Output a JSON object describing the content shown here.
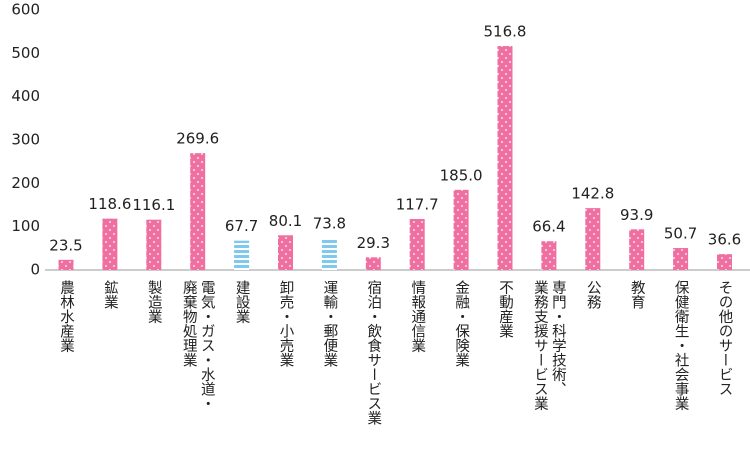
{
  "chart_data": {
    "type": "bar",
    "categories": [
      "農林水産業",
      "鉱業",
      "製造業",
      "電気・ガス・水道・\n廃棄物処理業",
      "建設業",
      "卸売・小売業",
      "運輸・郵便業",
      "宿泊・飲食サービス業",
      "情報通信業",
      "金融・保険業",
      "不動産業",
      "専門・科学技術、\n業務支援サービス業",
      "公務",
      "教育",
      "保健衛生・社会事業",
      "その他のサービス"
    ],
    "values": [
      23.5,
      118.6,
      116.1,
      269.6,
      67.7,
      80.1,
      73.8,
      29.3,
      117.7,
      185.0,
      516.8,
      66.4,
      142.8,
      93.9,
      50.7,
      36.6
    ],
    "value_labels": [
      "23.5",
      "118.6",
      "116.1",
      "269.6",
      "67.7",
      "80.1",
      "73.8",
      "29.3",
      "117.7",
      "185.0",
      "516.8",
      "66.4",
      "142.8",
      "93.9",
      "50.7",
      "36.6"
    ],
    "colors": [
      "#f06fa1",
      "#f06fa1",
      "#f06fa1",
      "#f06fa1",
      "#7fc9ef",
      "#f06fa1",
      "#7fc9ef",
      "#f06fa1",
      "#f06fa1",
      "#f06fa1",
      "#f06fa1",
      "#f06fa1",
      "#f06fa1",
      "#f06fa1",
      "#f06fa1",
      "#f06fa1"
    ],
    "ylim": [
      0,
      600
    ],
    "yticks": [
      0,
      100,
      200,
      300,
      400,
      500,
      600
    ]
  }
}
